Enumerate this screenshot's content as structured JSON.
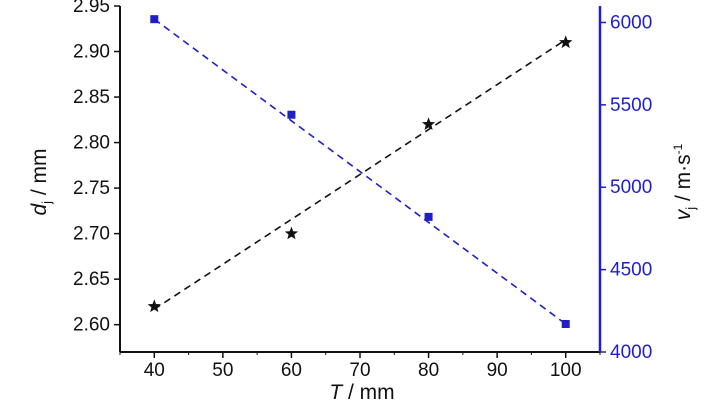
{
  "chart_data": {
    "type": "line",
    "x_axis": {
      "label_var": "T",
      "label_unit": " / mm",
      "range": [
        35,
        105
      ],
      "ticks": [
        40,
        50,
        60,
        70,
        80,
        90,
        100
      ],
      "tick_labels": [
        "40",
        "50",
        "60",
        "70",
        "80",
        "90",
        "100"
      ]
    },
    "y_left": {
      "label_var": "d",
      "label_sub": "j",
      "label_unit": " / mm",
      "range": [
        2.57,
        2.95
      ],
      "ticks": [
        2.6,
        2.65,
        2.7,
        2.75,
        2.8,
        2.85,
        2.9,
        2.95
      ],
      "tick_labels": [
        "2.60",
        "2.65",
        "2.70",
        "2.75",
        "2.80",
        "2.85",
        "2.90",
        "2.95"
      ]
    },
    "y_right": {
      "label_var": "v",
      "label_sub": "j",
      "label_unit": " / m·s",
      "label_sup": "-1",
      "range": [
        4000,
        6100
      ],
      "ticks": [
        4000,
        4500,
        5000,
        5500,
        6000
      ],
      "tick_labels": [
        "4000",
        "4500",
        "5000",
        "5500",
        "6000"
      ],
      "color": "#1f1fc8"
    },
    "series": [
      {
        "axis": "left",
        "marker": "star",
        "color": "#111111",
        "line": "dashed",
        "x": [
          40,
          60,
          80,
          100
        ],
        "y": [
          2.62,
          2.7,
          2.82,
          2.91
        ],
        "fit": [
          [
            40,
            2.617
          ],
          [
            100,
            2.913
          ]
        ]
      },
      {
        "axis": "right",
        "marker": "square",
        "color": "#1f1fc8",
        "line": "dashed",
        "x": [
          40,
          60,
          80,
          100
        ],
        "y": [
          6020,
          5440,
          4820,
          4170
        ],
        "fit": [
          [
            40,
            6020
          ],
          [
            100,
            4170
          ]
        ]
      }
    ]
  }
}
